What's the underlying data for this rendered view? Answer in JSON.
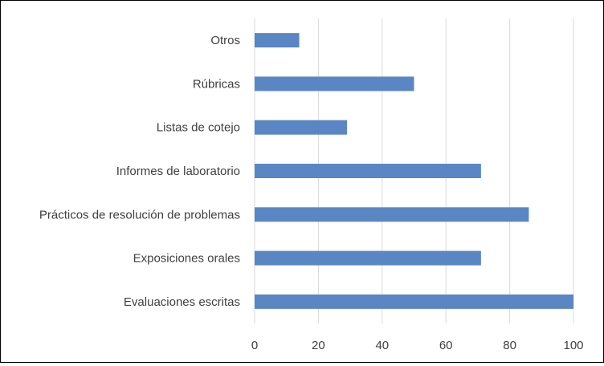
{
  "chart_data": {
    "type": "bar",
    "orientation": "horizontal",
    "title": "",
    "xlabel": "",
    "ylabel": "",
    "categories": [
      "Otros",
      "Rúbricas",
      "Listas de cotejo",
      "Informes de laboratorio",
      "Prácticos de resolución de problemas",
      "Exposiciones orales",
      "Evaluaciones escritas"
    ],
    "values": [
      14,
      50,
      29,
      71,
      86,
      71,
      100
    ],
    "xlim": [
      0,
      100
    ],
    "xticks": [
      0,
      20,
      40,
      60,
      80,
      100
    ],
    "grid": true,
    "legend": "none",
    "colors": {
      "bar": "#5B86C4",
      "grid": "#D9D9D9",
      "text": "#404040"
    }
  }
}
